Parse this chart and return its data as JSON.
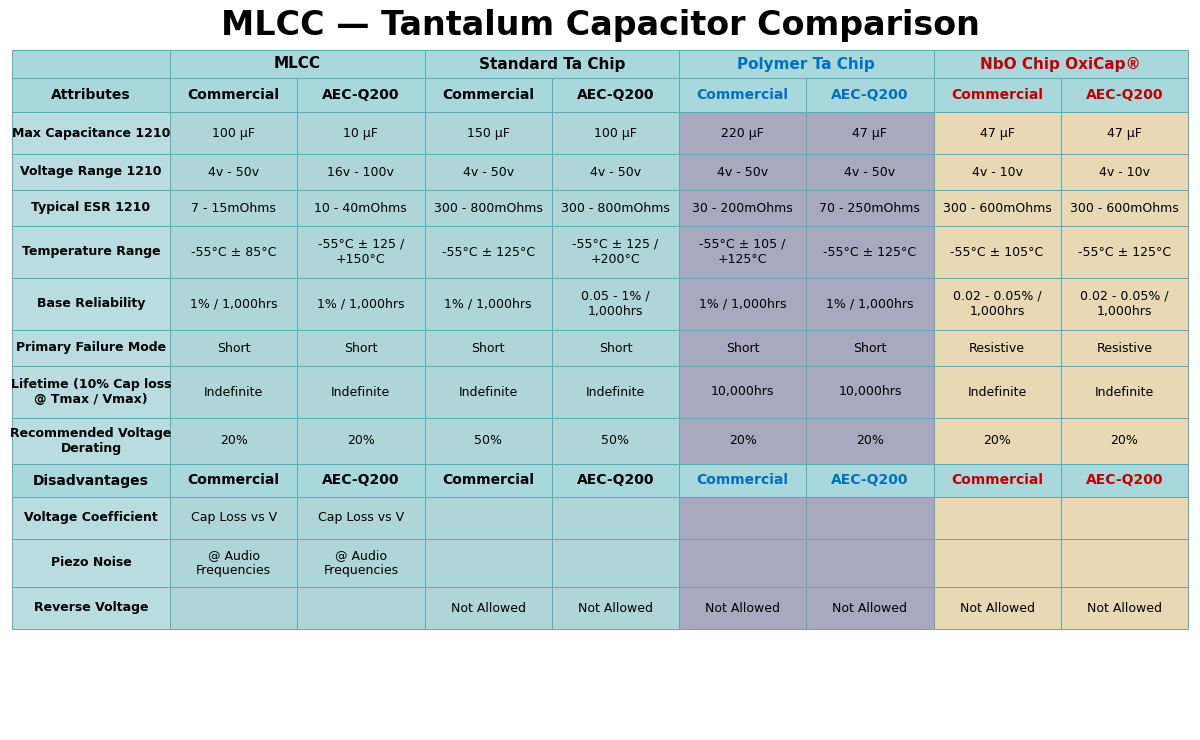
{
  "title": "MLCC — Tantalum Capacitor Comparison",
  "groups": [
    {
      "label": "MLCC",
      "text_color": "#000000",
      "c1": 1,
      "c2": 2
    },
    {
      "label": "Standard Ta Chip",
      "text_color": "#000000",
      "c1": 3,
      "c2": 4
    },
    {
      "label": "Polymer Ta Chip",
      "text_color": "#0070c0",
      "c1": 5,
      "c2": 6
    },
    {
      "label": "NbO Chip OxiCap®",
      "text_color": "#c00000",
      "c1": 7,
      "c2": 8
    }
  ],
  "header_cols": [
    "Commercial",
    "AEC-Q200",
    "Commercial",
    "AEC-Q200",
    "Commercial",
    "AEC-Q200",
    "Commercial",
    "AEC-Q200"
  ],
  "header_col_colors": [
    "#000000",
    "#000000",
    "#000000",
    "#000000",
    "#0070c0",
    "#0070c0",
    "#c00000",
    "#c00000"
  ],
  "col_bg": [
    "#aed6d8",
    "#aed6d8",
    "#aed6d8",
    "#aed6d8",
    "#a8a8c0",
    "#a8a8c0",
    "#e8d8b4",
    "#e8d8b4"
  ],
  "header_bg": "#a8d8dc",
  "row_label_bg": "#b8dce0",
  "data_rows": [
    {
      "label": "Max Capacitance 1210",
      "values": [
        "100 μF",
        "10 μF",
        "150 μF",
        "100 μF",
        "220 μF",
        "47 μF",
        "47 μF",
        "47 μF"
      ]
    },
    {
      "label": "Voltage Range 1210",
      "values": [
        "4v - 50v",
        "16v - 100v",
        "4v - 50v",
        "4v - 50v",
        "4v - 50v",
        "4v - 50v",
        "4v - 10v",
        "4v - 10v"
      ]
    },
    {
      "label": "Typical ESR 1210",
      "values": [
        "7 - 15mOhms",
        "10 - 40mOhms",
        "300 - 800mOhms",
        "300 - 800mOhms",
        "30 - 200mOhms",
        "70 - 250mOhms",
        "300 - 600mOhms",
        "300 - 600mOhms"
      ]
    },
    {
      "label": "Temperature Range",
      "values": [
        "-55°C ± 85°C",
        "-55°C ± 125 /\n+150°C",
        "-55°C ± 125°C",
        "-55°C ± 125 /\n+200°C",
        "-55°C ± 105 /\n+125°C",
        "-55°C ± 125°C",
        "-55°C ± 105°C",
        "-55°C ± 125°C"
      ]
    },
    {
      "label": "Base Reliability",
      "values": [
        "1% / 1,000hrs",
        "1% / 1,000hrs",
        "1% / 1,000hrs",
        "0.05 - 1% /\n1,000hrs",
        "1% / 1,000hrs",
        "1% / 1,000hrs",
        "0.02 - 0.05% /\n1,000hrs",
        "0.02 - 0.05% /\n1,000hrs"
      ]
    },
    {
      "label": "Primary Failure Mode",
      "values": [
        "Short",
        "Short",
        "Short",
        "Short",
        "Short",
        "Short",
        "Resistive",
        "Resistive"
      ]
    },
    {
      "label": "Lifetime (10% Cap loss\n@ Tmax / Vmax)",
      "values": [
        "Indefinite",
        "Indefinite",
        "Indefinite",
        "Indefinite",
        "10,000hrs",
        "10,000hrs",
        "Indefinite",
        "Indefinite"
      ]
    },
    {
      "label": "Recommended Voltage\nDerating",
      "values": [
        "20%",
        "20%",
        "50%",
        "50%",
        "20%",
        "20%",
        "20%",
        "20%"
      ]
    }
  ],
  "disadv_rows": [
    {
      "label": "Voltage Coefficient",
      "values": [
        "Cap Loss vs V",
        "Cap Loss vs V",
        "",
        "",
        "",
        "",
        "",
        ""
      ]
    },
    {
      "label": "Piezo Noise",
      "values": [
        "@ Audio\nFrequencies",
        "@ Audio\nFrequencies",
        "",
        "",
        "",
        "",
        "",
        ""
      ]
    },
    {
      "label": "Reverse Voltage",
      "values": [
        "",
        "",
        "Not Allowed",
        "Not Allowed",
        "Not Allowed",
        "Not Allowed",
        "Not Allowed",
        "Not Allowed"
      ]
    }
  ],
  "title_fontsize": 24,
  "group_fontsize": 11,
  "attr_fontsize": 10,
  "subhdr_fontsize": 10,
  "cell_fontsize": 9,
  "row_label_fontsize": 9
}
